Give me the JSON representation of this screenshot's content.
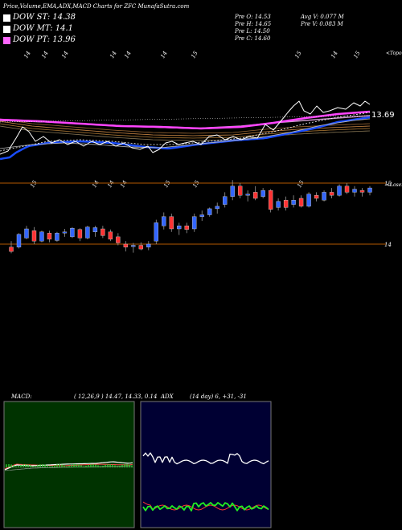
{
  "header": {
    "title": "Price,Volume,EMA,ADX,MACD Charts for ZFC MunafaSutra.com",
    "open": "Pre  O: 14.53",
    "high": "Pre  H: 14.65",
    "low": "Pre  L: 14.50",
    "close": "Pre  C: 14.60",
    "avg_volume": "Avg V: 0.077 M",
    "prev_volume": "Pre  V: 0.083 M"
  },
  "legend": [
    {
      "label": "DOW ST: 14.38",
      "color": "#ffffff"
    },
    {
      "label": "DOW MT: 14.1",
      "color": "#ffffff"
    },
    {
      "label": "DOW PT: 13.96",
      "color": "#ff66ff"
    }
  ],
  "top_panel": {
    "corner_label": "<Topo",
    "date_labels": [
      "14",
      "14",
      "14",
      "14",
      "14",
      "14",
      "15",
      "15",
      "14",
      "15"
    ],
    "price_label": "13.69"
  },
  "candle_panel": {
    "corner_label": "<Losem",
    "date_labels": [
      "15",
      "14",
      "14",
      "14",
      "15",
      "15",
      "15"
    ],
    "price_labels": [
      "15",
      "14"
    ]
  },
  "macd": {
    "label": "MACD:",
    "params": "( 12,26,9 ) 14.47,  14.33,  0.14"
  },
  "adx": {
    "label": "ADX",
    "params": "(14  day) 6,  +31,  -31"
  },
  "colors": {
    "up": "#3366ff",
    "down": "#ff3333",
    "ema_short": "#1a4dff",
    "ema_long": "#ff44ff",
    "macd_bg": "#003300",
    "adx_bg": "#000033",
    "guide": "#b35900"
  },
  "chart_data": [
    {
      "type": "line",
      "panel": "price-ema",
      "price_level": 13.69,
      "series": []
    },
    {
      "type": "candlestick",
      "panel": "price-candles",
      "price_levels": [
        15,
        14
      ],
      "candles": [
        [
          13.95,
          14.05,
          13.85,
          13.88
        ],
        [
          13.95,
          14.18,
          13.93,
          14.16
        ],
        [
          14.1,
          14.3,
          14.08,
          14.25
        ],
        [
          14.22,
          14.28,
          14.0,
          14.05
        ],
        [
          14.05,
          14.22,
          14.03,
          14.2
        ],
        [
          14.18,
          14.22,
          14.03,
          14.08
        ],
        [
          14.06,
          14.2,
          14.04,
          14.18
        ],
        [
          14.2,
          14.25,
          14.12,
          14.2
        ],
        [
          14.12,
          14.28,
          14.1,
          14.26
        ],
        [
          14.24,
          14.26,
          14.05,
          14.1
        ],
        [
          14.1,
          14.3,
          14.08,
          14.28
        ],
        [
          14.2,
          14.3,
          14.12,
          14.27
        ],
        [
          14.25,
          14.3,
          14.1,
          14.14
        ],
        [
          14.2,
          14.24,
          14.05,
          14.08
        ],
        [
          14.12,
          14.18,
          13.98,
          14.02
        ],
        [
          14.0,
          14.05,
          13.88,
          13.95
        ],
        [
          13.96,
          14.02,
          13.86,
          13.98
        ],
        [
          13.98,
          14.03,
          13.9,
          13.92
        ],
        [
          13.95,
          14.05,
          13.9,
          14.0
        ],
        [
          14.05,
          14.4,
          14.0,
          14.35
        ],
        [
          14.3,
          14.52,
          14.24,
          14.45
        ],
        [
          14.45,
          14.5,
          14.2,
          14.25
        ],
        [
          14.25,
          14.35,
          14.15,
          14.3
        ],
        [
          14.3,
          14.35,
          14.18,
          14.24
        ],
        [
          14.25,
          14.5,
          14.2,
          14.45
        ],
        [
          14.45,
          14.55,
          14.38,
          14.48
        ],
        [
          14.48,
          14.6,
          14.45,
          14.58
        ],
        [
          14.58,
          14.68,
          14.5,
          14.62
        ],
        [
          14.65,
          14.85,
          14.6,
          14.78
        ],
        [
          14.78,
          15.05,
          14.72,
          14.95
        ],
        [
          14.95,
          15.0,
          14.75,
          14.8
        ],
        [
          14.8,
          14.88,
          14.7,
          14.82
        ],
        [
          14.85,
          14.95,
          14.72,
          14.75
        ],
        [
          14.78,
          14.92,
          14.75,
          14.88
        ],
        [
          14.88,
          14.9,
          14.52,
          14.57
        ],
        [
          14.6,
          14.75,
          14.55,
          14.7
        ],
        [
          14.72,
          14.78,
          14.55,
          14.6
        ],
        [
          14.65,
          14.8,
          14.6,
          14.72
        ],
        [
          14.75,
          14.8,
          14.6,
          14.62
        ],
        [
          14.62,
          14.85,
          14.6,
          14.82
        ],
        [
          14.8,
          14.85,
          14.7,
          14.75
        ],
        [
          14.72,
          14.88,
          14.7,
          14.85
        ],
        [
          14.85,
          14.92,
          14.75,
          14.8
        ],
        [
          14.8,
          14.98,
          14.78,
          14.95
        ],
        [
          14.95,
          15.0,
          14.82,
          14.85
        ],
        [
          14.85,
          14.95,
          14.78,
          14.9
        ],
        [
          14.88,
          14.92,
          14.78,
          14.85
        ],
        [
          14.85,
          14.95,
          14.8,
          14.92
        ]
      ]
    },
    {
      "type": "line",
      "panel": "macd",
      "series": []
    },
    {
      "type": "line",
      "panel": "adx",
      "series": []
    }
  ]
}
